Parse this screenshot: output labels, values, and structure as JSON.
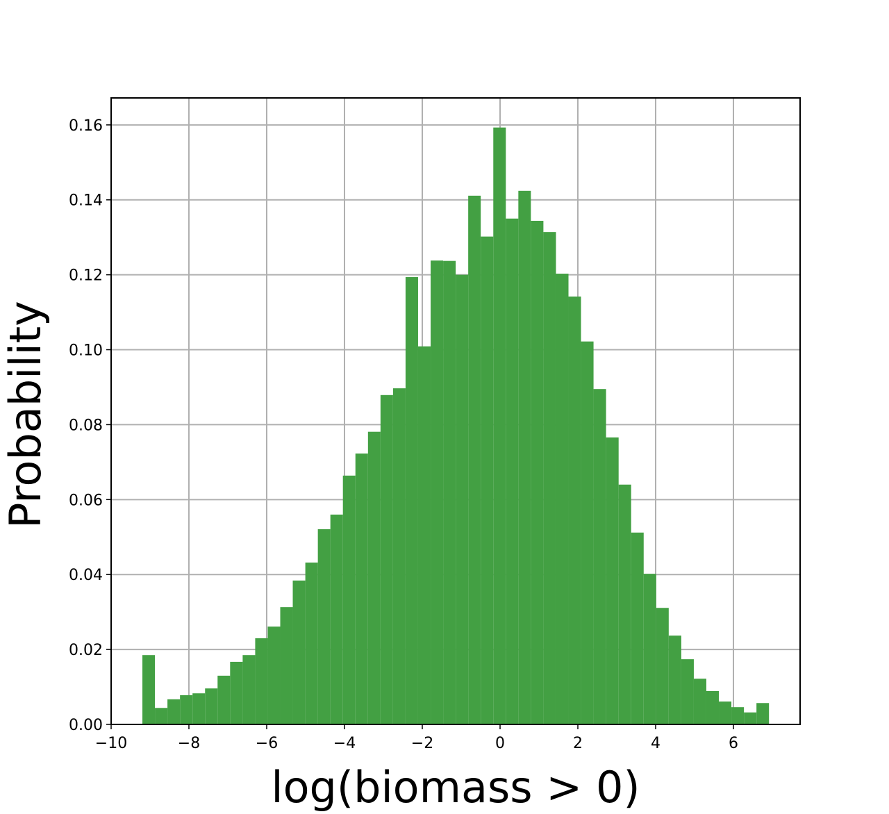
{
  "chart_data": {
    "type": "histogram",
    "x_label": "log(biomass > 0)",
    "y_label": "Probability",
    "color": "#43a043",
    "grid": true,
    "bins": [
      -9.196,
      -8.874,
      -8.552,
      -8.229,
      -7.907,
      -7.585,
      -7.263,
      -6.941,
      -6.618,
      -6.296,
      -5.974,
      -5.652,
      -5.33,
      -5.007,
      -4.685,
      -4.363,
      -4.041,
      -3.719,
      -3.396,
      -3.074,
      -2.752,
      -2.43,
      -2.108,
      -1.785,
      -1.463,
      -1.141,
      -0.819,
      -0.497,
      -0.174,
      0.148,
      0.47,
      0.792,
      1.114,
      1.437,
      1.759,
      2.081,
      2.403,
      2.725,
      3.048,
      3.37,
      3.692,
      4.014,
      4.336,
      4.659,
      4.981,
      5.303,
      5.625,
      5.947,
      6.27,
      6.592,
      6.914
    ],
    "values": [
      0.0185,
      0.0044,
      0.0067,
      0.0078,
      0.0083,
      0.0096,
      0.013,
      0.0167,
      0.0185,
      0.023,
      0.0261,
      0.0313,
      0.0384,
      0.0432,
      0.0521,
      0.056,
      0.0664,
      0.0723,
      0.0781,
      0.0879,
      0.0897,
      0.1194,
      0.1009,
      0.1238,
      0.1237,
      0.12,
      0.1411,
      0.1302,
      0.1593,
      0.135,
      0.1424,
      0.1344,
      0.1314,
      0.1203,
      0.1142,
      0.1022,
      0.0895,
      0.0766,
      0.064,
      0.0512,
      0.0402,
      0.0311,
      0.0237,
      0.0174,
      0.0122,
      0.0089,
      0.0061,
      0.0046,
      0.0032,
      0.0057
    ],
    "xlim": [
      -10,
      7.714
    ],
    "ylim": [
      0,
      0.1672
    ],
    "xticks": [
      {
        "value": -10,
        "label": "−10"
      },
      {
        "value": -8,
        "label": "−8"
      },
      {
        "value": -6,
        "label": "−6"
      },
      {
        "value": -4,
        "label": "−4"
      },
      {
        "value": -2,
        "label": "−2"
      },
      0,
      2,
      4,
      6
    ],
    "yticks": [
      {
        "value": 0,
        "label": "0.00"
      },
      {
        "value": 0.02,
        "label": "0.02"
      },
      {
        "value": 0.04,
        "label": "0.04"
      },
      {
        "value": 0.06,
        "label": "0.06"
      },
      {
        "value": 0.08,
        "label": "0.08"
      },
      {
        "value": 0.1,
        "label": "0.10"
      },
      {
        "value": 0.12,
        "label": "0.12"
      },
      {
        "value": 0.14,
        "label": "0.14"
      },
      {
        "value": 0.16,
        "label": "0.16"
      }
    ]
  }
}
